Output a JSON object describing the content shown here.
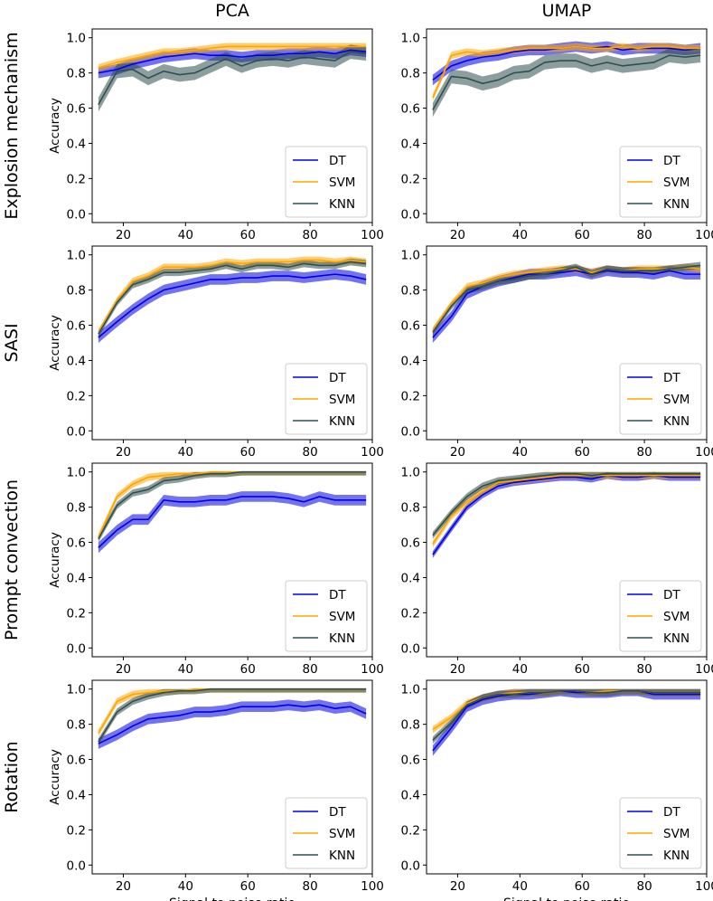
{
  "column_titles": [
    "PCA",
    "UMAP"
  ],
  "row_titles": [
    "Explosion mechanism",
    "SASI",
    "Prompt convection",
    "Rotation"
  ],
  "colors": {
    "DT": "#0000e0",
    "SVM": "#ffa500",
    "KNN": "#2f4f4f"
  },
  "chart_data": [
    {
      "type": "line",
      "row": "Explosion mechanism",
      "column": "PCA",
      "xlabel": "",
      "ylabel": "Accuracy",
      "xlim": [
        10,
        100
      ],
      "ylim": [
        -0.05,
        1.05
      ],
      "xticks": [
        20,
        40,
        60,
        80,
        100
      ],
      "yticks": [
        0.0,
        0.2,
        0.4,
        0.6,
        0.8,
        1.0
      ],
      "legend_position": "lower right",
      "x": [
        12,
        18,
        23,
        28,
        33,
        38,
        43,
        48,
        53,
        58,
        63,
        68,
        73,
        78,
        83,
        88,
        93,
        98
      ],
      "series": [
        {
          "name": "DT",
          "y": [
            0.8,
            0.82,
            0.85,
            0.87,
            0.89,
            0.9,
            0.91,
            0.9,
            0.9,
            0.89,
            0.9,
            0.9,
            0.91,
            0.91,
            0.92,
            0.91,
            0.93,
            0.92
          ],
          "band": 0.03
        },
        {
          "name": "SVM",
          "y": [
            0.83,
            0.86,
            0.88,
            0.9,
            0.92,
            0.92,
            0.93,
            0.94,
            0.95,
            0.95,
            0.95,
            0.95,
            0.95,
            0.95,
            0.95,
            0.95,
            0.95,
            0.95
          ],
          "band": 0.02
        },
        {
          "name": "KNN",
          "y": [
            0.62,
            0.81,
            0.82,
            0.77,
            0.81,
            0.79,
            0.8,
            0.84,
            0.88,
            0.84,
            0.87,
            0.88,
            0.87,
            0.89,
            0.88,
            0.87,
            0.92,
            0.91
          ],
          "band": 0.04
        }
      ]
    },
    {
      "type": "line",
      "row": "Explosion mechanism",
      "column": "UMAP",
      "xlabel": "",
      "ylabel": "",
      "xlim": [
        10,
        100
      ],
      "ylim": [
        -0.05,
        1.05
      ],
      "xticks": [
        20,
        40,
        60,
        80,
        100
      ],
      "yticks": [
        0.0,
        0.2,
        0.4,
        0.6,
        0.8,
        1.0
      ],
      "legend_position": "lower right",
      "x": [
        12,
        18,
        23,
        28,
        33,
        38,
        43,
        48,
        53,
        58,
        63,
        68,
        73,
        78,
        83,
        88,
        93,
        98
      ],
      "series": [
        {
          "name": "DT",
          "y": [
            0.76,
            0.84,
            0.87,
            0.89,
            0.9,
            0.92,
            0.93,
            0.93,
            0.94,
            0.95,
            0.94,
            0.95,
            0.93,
            0.94,
            0.94,
            0.94,
            0.93,
            0.94
          ],
          "band": 0.03
        },
        {
          "name": "SVM",
          "y": [
            0.66,
            0.9,
            0.92,
            0.91,
            0.92,
            0.93,
            0.94,
            0.94,
            0.94,
            0.95,
            0.94,
            0.94,
            0.95,
            0.94,
            0.95,
            0.95,
            0.94,
            0.94
          ],
          "band": 0.02
        },
        {
          "name": "KNN",
          "y": [
            0.59,
            0.78,
            0.77,
            0.74,
            0.76,
            0.8,
            0.81,
            0.86,
            0.87,
            0.87,
            0.84,
            0.86,
            0.84,
            0.85,
            0.86,
            0.9,
            0.89,
            0.9
          ],
          "band": 0.04
        }
      ]
    },
    {
      "type": "line",
      "row": "SASI",
      "column": "PCA",
      "xlabel": "",
      "ylabel": "Accuracy",
      "xlim": [
        10,
        100
      ],
      "ylim": [
        -0.05,
        1.05
      ],
      "xticks": [
        20,
        40,
        60,
        80,
        100
      ],
      "yticks": [
        0.0,
        0.2,
        0.4,
        0.6,
        0.8,
        1.0
      ],
      "legend_position": "lower right",
      "x": [
        12,
        18,
        23,
        28,
        33,
        38,
        43,
        48,
        53,
        58,
        63,
        68,
        73,
        78,
        83,
        88,
        93,
        98
      ],
      "series": [
        {
          "name": "DT",
          "y": [
            0.53,
            0.62,
            0.69,
            0.75,
            0.8,
            0.82,
            0.84,
            0.86,
            0.86,
            0.87,
            0.87,
            0.88,
            0.88,
            0.87,
            0.88,
            0.89,
            0.88,
            0.86
          ],
          "band": 0.03
        },
        {
          "name": "SVM",
          "y": [
            0.56,
            0.74,
            0.85,
            0.88,
            0.93,
            0.93,
            0.93,
            0.94,
            0.96,
            0.95,
            0.96,
            0.96,
            0.96,
            0.97,
            0.97,
            0.96,
            0.97,
            0.96
          ],
          "band": 0.02
        },
        {
          "name": "KNN",
          "y": [
            0.55,
            0.73,
            0.83,
            0.86,
            0.9,
            0.9,
            0.91,
            0.92,
            0.94,
            0.92,
            0.94,
            0.94,
            0.93,
            0.95,
            0.94,
            0.94,
            0.96,
            0.95
          ],
          "band": 0.02
        }
      ]
    },
    {
      "type": "line",
      "row": "SASI",
      "column": "UMAP",
      "xlabel": "",
      "ylabel": "",
      "xlim": [
        10,
        100
      ],
      "ylim": [
        -0.05,
        1.05
      ],
      "xticks": [
        20,
        40,
        60,
        80,
        100
      ],
      "yticks": [
        0.0,
        0.2,
        0.4,
        0.6,
        0.8,
        1.0
      ],
      "legend_position": "lower right",
      "x": [
        12,
        18,
        23,
        28,
        33,
        38,
        43,
        48,
        53,
        58,
        63,
        68,
        73,
        78,
        83,
        88,
        93,
        98
      ],
      "series": [
        {
          "name": "DT",
          "y": [
            0.53,
            0.65,
            0.78,
            0.82,
            0.85,
            0.87,
            0.89,
            0.89,
            0.9,
            0.91,
            0.89,
            0.91,
            0.9,
            0.9,
            0.89,
            0.91,
            0.89,
            0.89
          ],
          "band": 0.03
        },
        {
          "name": "SVM",
          "y": [
            0.57,
            0.72,
            0.82,
            0.84,
            0.87,
            0.89,
            0.9,
            0.91,
            0.92,
            0.92,
            0.9,
            0.92,
            0.91,
            0.92,
            0.92,
            0.92,
            0.93,
            0.92
          ],
          "band": 0.02
        },
        {
          "name": "KNN",
          "y": [
            0.56,
            0.71,
            0.8,
            0.82,
            0.85,
            0.86,
            0.88,
            0.89,
            0.91,
            0.93,
            0.89,
            0.92,
            0.91,
            0.91,
            0.91,
            0.92,
            0.93,
            0.94
          ],
          "band": 0.02
        }
      ]
    },
    {
      "type": "line",
      "row": "Prompt convection",
      "column": "PCA",
      "xlabel": "",
      "ylabel": "Accuracy",
      "xlim": [
        10,
        100
      ],
      "ylim": [
        -0.05,
        1.05
      ],
      "xticks": [
        20,
        40,
        60,
        80,
        100
      ],
      "yticks": [
        0.0,
        0.2,
        0.4,
        0.6,
        0.8,
        1.0
      ],
      "legend_position": "lower right",
      "x": [
        12,
        18,
        23,
        28,
        33,
        38,
        43,
        48,
        53,
        58,
        63,
        68,
        73,
        78,
        83,
        88,
        93,
        98
      ],
      "series": [
        {
          "name": "DT",
          "y": [
            0.57,
            0.67,
            0.73,
            0.73,
            0.84,
            0.83,
            0.83,
            0.84,
            0.84,
            0.86,
            0.86,
            0.86,
            0.85,
            0.83,
            0.86,
            0.84,
            0.84,
            0.84
          ],
          "band": 0.03
        },
        {
          "name": "SVM",
          "y": [
            0.63,
            0.86,
            0.93,
            0.97,
            0.98,
            0.99,
            0.99,
            1.0,
            1.0,
            1.0,
            1.0,
            1.0,
            1.0,
            1.0,
            1.0,
            1.0,
            1.0,
            1.0
          ],
          "band": 0.02
        },
        {
          "name": "KNN",
          "y": [
            0.62,
            0.81,
            0.88,
            0.9,
            0.95,
            0.96,
            0.98,
            0.99,
            0.99,
            1.0,
            1.0,
            1.0,
            1.0,
            1.0,
            1.0,
            1.0,
            1.0,
            1.0
          ],
          "band": 0.02
        }
      ]
    },
    {
      "type": "line",
      "row": "Prompt convection",
      "column": "UMAP",
      "xlabel": "",
      "ylabel": "",
      "xlim": [
        10,
        100
      ],
      "ylim": [
        -0.05,
        1.05
      ],
      "xticks": [
        20,
        40,
        60,
        80,
        100
      ],
      "yticks": [
        0.0,
        0.2,
        0.4,
        0.6,
        0.8,
        1.0
      ],
      "legend_position": "lower right",
      "x": [
        12,
        18,
        23,
        28,
        33,
        38,
        43,
        48,
        53,
        58,
        63,
        68,
        73,
        78,
        83,
        88,
        93,
        98
      ],
      "series": [
        {
          "name": "DT",
          "y": [
            0.53,
            0.68,
            0.8,
            0.87,
            0.92,
            0.94,
            0.95,
            0.96,
            0.97,
            0.97,
            0.96,
            0.98,
            0.97,
            0.97,
            0.98,
            0.97,
            0.97,
            0.97
          ],
          "band": 0.02
        },
        {
          "name": "SVM",
          "y": [
            0.59,
            0.75,
            0.83,
            0.89,
            0.94,
            0.95,
            0.96,
            0.97,
            0.98,
            0.98,
            0.98,
            0.98,
            0.98,
            0.98,
            0.98,
            0.98,
            0.98,
            0.98
          ],
          "band": 0.02
        },
        {
          "name": "KNN",
          "y": [
            0.64,
            0.77,
            0.86,
            0.92,
            0.95,
            0.96,
            0.97,
            0.98,
            0.99,
            0.99,
            0.98,
            0.99,
            0.99,
            0.99,
            0.99,
            0.99,
            0.99,
            0.99
          ],
          "band": 0.02
        }
      ]
    },
    {
      "type": "line",
      "row": "Rotation",
      "column": "PCA",
      "xlabel": "Signal to noise ratio",
      "ylabel": "Accuracy",
      "xlim": [
        10,
        100
      ],
      "ylim": [
        -0.05,
        1.05
      ],
      "xticks": [
        20,
        40,
        60,
        80,
        100
      ],
      "yticks": [
        0.0,
        0.2,
        0.4,
        0.6,
        0.8,
        1.0
      ],
      "legend_position": "lower right",
      "x": [
        12,
        18,
        23,
        28,
        33,
        38,
        43,
        48,
        53,
        58,
        63,
        68,
        73,
        78,
        83,
        88,
        93,
        98
      ],
      "series": [
        {
          "name": "DT",
          "y": [
            0.69,
            0.74,
            0.79,
            0.83,
            0.84,
            0.85,
            0.87,
            0.87,
            0.88,
            0.9,
            0.9,
            0.9,
            0.91,
            0.9,
            0.91,
            0.89,
            0.9,
            0.86
          ],
          "band": 0.03
        },
        {
          "name": "SVM",
          "y": [
            0.75,
            0.93,
            0.97,
            0.98,
            0.99,
            0.99,
            1.0,
            1.0,
            1.0,
            1.0,
            1.0,
            1.0,
            1.0,
            1.0,
            1.0,
            1.0,
            1.0,
            1.0
          ],
          "band": 0.02
        },
        {
          "name": "KNN",
          "y": [
            0.7,
            0.87,
            0.93,
            0.96,
            0.98,
            0.99,
            0.99,
            1.0,
            1.0,
            1.0,
            1.0,
            1.0,
            1.0,
            1.0,
            1.0,
            1.0,
            1.0,
            1.0
          ],
          "band": 0.02
        }
      ]
    },
    {
      "type": "line",
      "row": "Rotation",
      "column": "UMAP",
      "xlabel": "Signal to noise ratio",
      "ylabel": "",
      "xlim": [
        10,
        100
      ],
      "ylim": [
        -0.05,
        1.05
      ],
      "xticks": [
        20,
        40,
        60,
        80,
        100
      ],
      "yticks": [
        0.0,
        0.2,
        0.4,
        0.6,
        0.8,
        1.0
      ],
      "legend_position": "lower right",
      "x": [
        12,
        18,
        23,
        28,
        33,
        38,
        43,
        48,
        53,
        58,
        63,
        68,
        73,
        78,
        83,
        88,
        93,
        98
      ],
      "series": [
        {
          "name": "DT",
          "y": [
            0.65,
            0.78,
            0.9,
            0.94,
            0.96,
            0.97,
            0.97,
            0.98,
            0.99,
            0.98,
            0.98,
            0.98,
            0.99,
            0.99,
            0.97,
            0.97,
            0.97,
            0.97
          ],
          "band": 0.03
        },
        {
          "name": "SVM",
          "y": [
            0.77,
            0.84,
            0.92,
            0.95,
            0.97,
            0.98,
            0.98,
            0.98,
            0.99,
            0.99,
            0.98,
            0.99,
            0.99,
            0.99,
            0.98,
            0.98,
            0.98,
            0.98
          ],
          "band": 0.02
        },
        {
          "name": "KNN",
          "y": [
            0.71,
            0.81,
            0.91,
            0.95,
            0.97,
            0.97,
            0.98,
            0.98,
            0.99,
            0.99,
            0.98,
            0.98,
            0.99,
            0.99,
            0.98,
            0.98,
            0.98,
            0.98
          ],
          "band": 0.02
        }
      ]
    }
  ]
}
